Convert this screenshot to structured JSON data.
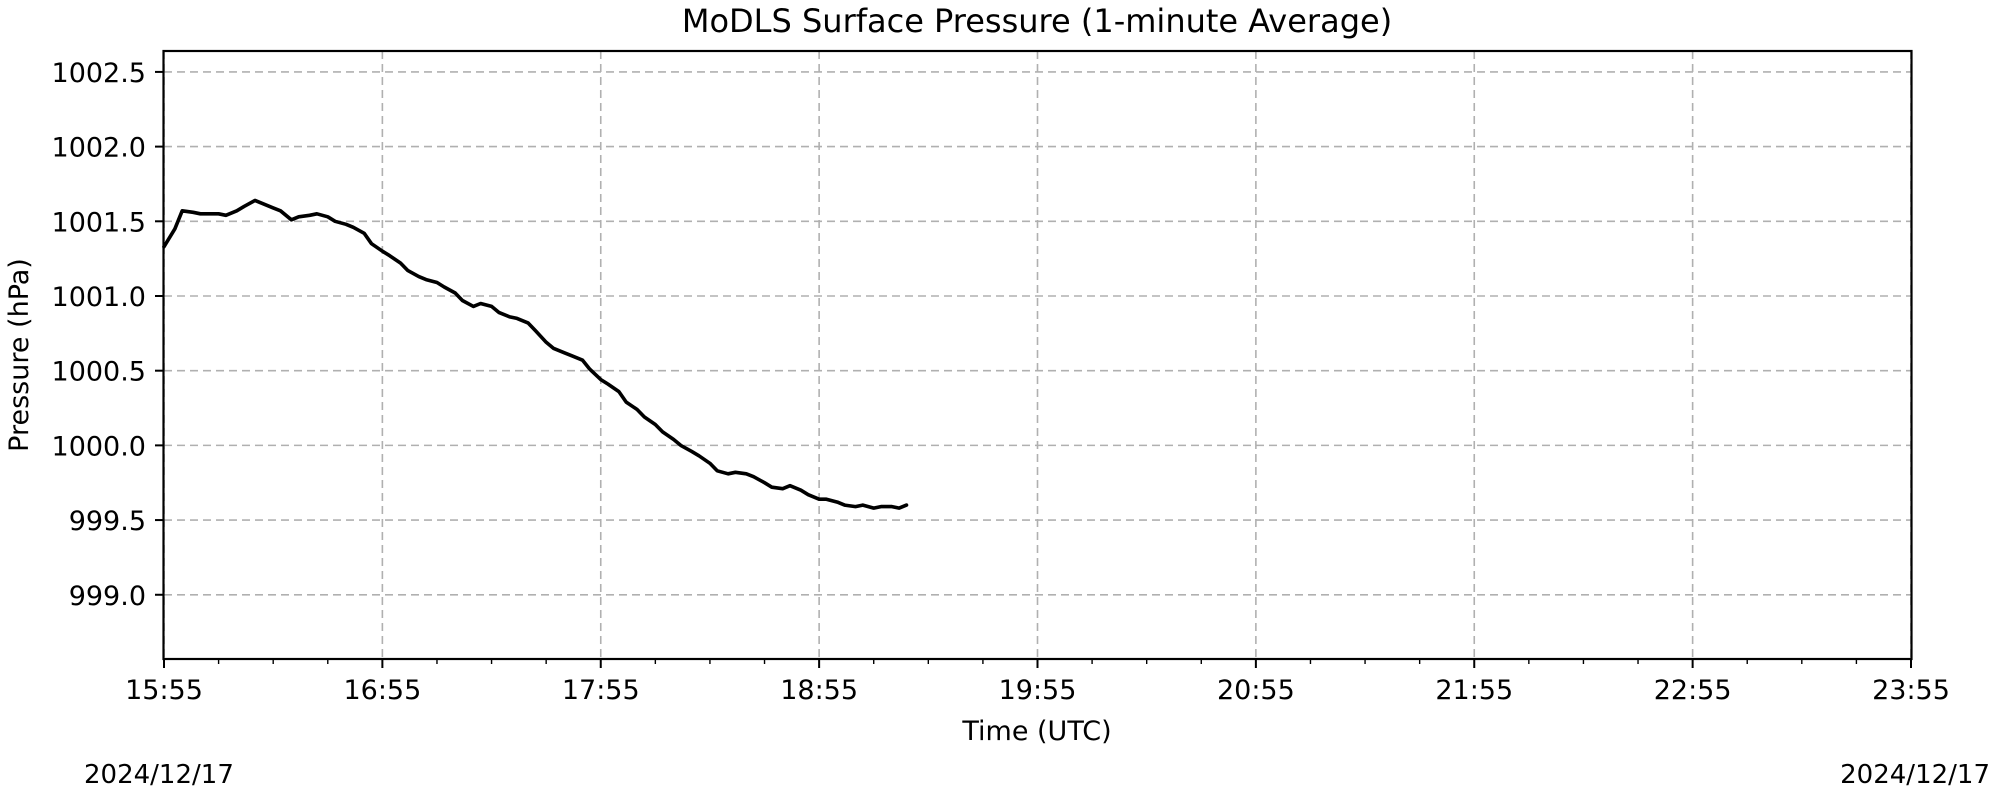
{
  "chart_data": {
    "type": "line",
    "title": "MoDLS Surface Pressure (1-minute Average)",
    "xlabel": "Time (UTC)",
    "ylabel": "Pressure (hPa)",
    "xlim": [
      "15:55",
      "23:55"
    ],
    "ylim": [
      998.57,
      1002.64
    ],
    "x_ticks": [
      "15:55",
      "16:55",
      "17:55",
      "18:55",
      "19:55",
      "20:55",
      "21:55",
      "22:55",
      "23:55"
    ],
    "y_ticks": [
      "999.0",
      "999.5",
      "1000.0",
      "1000.5",
      "1001.0",
      "1001.5",
      "1002.0",
      "1002.5"
    ],
    "grid": true,
    "date_left": "2024/12/17",
    "date_right": "2024/12/17",
    "line_color": "#000000",
    "series": [
      {
        "x": [
          "15:55",
          "15:58",
          "16:00",
          "16:03",
          "16:05",
          "16:07",
          "16:10",
          "16:12",
          "16:15",
          "16:17",
          "16:20",
          "16:22",
          "16:25",
          "16:27",
          "16:30",
          "16:32",
          "16:35",
          "16:37",
          "16:40",
          "16:42",
          "16:45",
          "16:47",
          "16:50",
          "16:52",
          "16:55",
          "16:57",
          "17:00",
          "17:02",
          "17:05",
          "17:07",
          "17:10",
          "17:12",
          "17:15",
          "17:17",
          "17:20",
          "17:22",
          "17:25",
          "17:27",
          "17:30",
          "17:32",
          "17:35",
          "17:37",
          "17:40",
          "17:42",
          "17:45",
          "17:47",
          "17:50",
          "17:52",
          "17:55",
          "17:57",
          "18:00",
          "18:02",
          "18:05",
          "18:07",
          "18:10",
          "18:12",
          "18:15",
          "18:17",
          "18:20",
          "18:22",
          "18:25",
          "18:27",
          "18:30",
          "18:32",
          "18:35",
          "18:37",
          "18:40",
          "18:42",
          "18:45",
          "18:47",
          "18:50",
          "18:52",
          "18:55",
          "18:57",
          "19:00",
          "19:02",
          "19:05",
          "19:07",
          "19:10",
          "19:12",
          "19:15",
          "19:17",
          "19:19"
        ],
        "values": [
          1001.33,
          1001.45,
          1001.57,
          1001.56,
          1001.55,
          1001.55,
          1001.55,
          1001.54,
          1001.57,
          1001.6,
          1001.64,
          1001.62,
          1001.59,
          1001.57,
          1001.51,
          1001.53,
          1001.54,
          1001.55,
          1001.53,
          1001.5,
          1001.48,
          1001.46,
          1001.42,
          1001.35,
          1001.3,
          1001.27,
          1001.22,
          1001.17,
          1001.13,
          1001.11,
          1001.09,
          1001.06,
          1001.02,
          1000.97,
          1000.93,
          1000.95,
          1000.93,
          1000.89,
          1000.86,
          1000.85,
          1000.82,
          1000.77,
          1000.69,
          1000.65,
          1000.62,
          1000.6,
          1000.57,
          1000.51,
          1000.44,
          1000.41,
          1000.36,
          1000.29,
          1000.24,
          1000.19,
          1000.14,
          1000.09,
          1000.04,
          1000.0,
          999.96,
          999.93,
          999.88,
          999.83,
          999.81,
          999.82,
          999.81,
          999.79,
          999.75,
          999.72,
          999.71,
          999.73,
          999.7,
          999.67,
          999.64,
          999.64,
          999.62,
          999.6,
          999.59,
          999.6,
          999.58,
          999.59,
          999.59,
          999.58,
          999.6
        ]
      }
    ]
  }
}
